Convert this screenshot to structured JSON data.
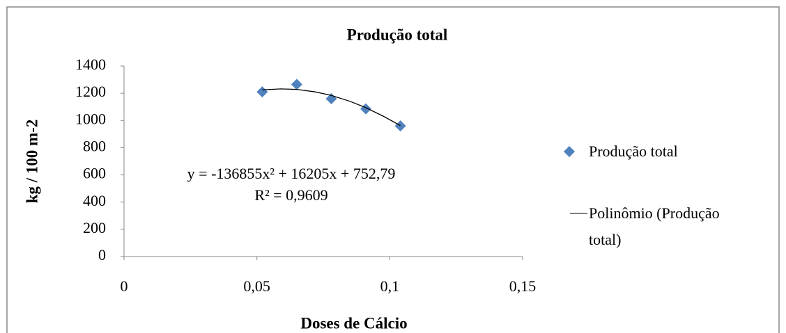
{
  "chart_data": {
    "type": "scatter",
    "title": "Produção total",
    "x_label": "Doses de Cálcio",
    "y_label": "kg / 100 m-2",
    "series": [
      {
        "name": "Produção total",
        "color": "#4f81bd",
        "marker": "diamond",
        "x": [
          0.052,
          0.065,
          0.078,
          0.091,
          0.104
        ],
        "values": [
          1210,
          1265,
          1160,
          1085,
          960
        ]
      },
      {
        "name": "Polinômio (Produção total)",
        "color": "#000000",
        "kind": "line",
        "x": [
          0.052,
          0.059,
          0.065,
          0.072,
          0.078,
          0.085,
          0.091,
          0.098,
          0.104
        ],
        "values": [
          1225,
          1232,
          1228,
          1210,
          1184,
          1141,
          1094,
          1027,
          962
        ]
      }
    ],
    "annotations": [
      "y = -136855x² + 16205x + 752,79",
      "R² = 0,9609"
    ],
    "xlim": [
      0,
      0.15
    ],
    "xticks": [
      0,
      {
        "value": 0.05,
        "label": "0,05"
      },
      {
        "value": 0.1,
        "label": "0,1"
      },
      {
        "value": 0.15,
        "label": "0,15"
      }
    ],
    "ylim": [
      0,
      1400
    ],
    "yticks": [
      0,
      200,
      400,
      600,
      800,
      1000,
      1200,
      1400
    ],
    "grid": false,
    "legend": "right"
  }
}
